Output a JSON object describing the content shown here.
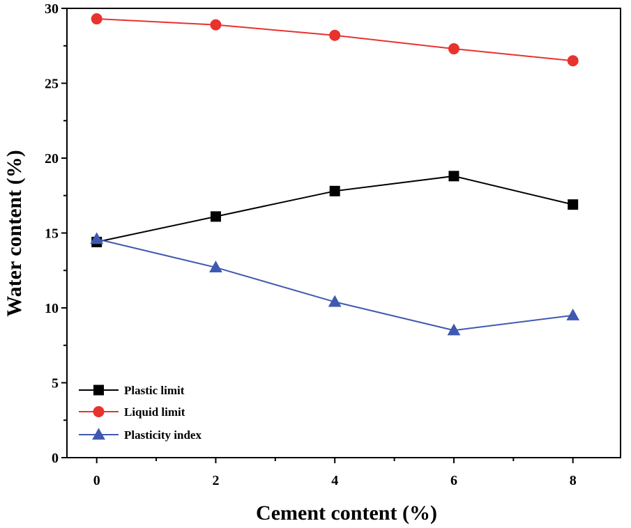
{
  "chart_data": {
    "type": "line",
    "title": "",
    "xlabel": "Cement content (%)",
    "ylabel": "Water content (%)",
    "xlim": [
      -0.5,
      8.8
    ],
    "ylim": [
      0,
      30
    ],
    "x_ticks": [
      0,
      2,
      4,
      6,
      8
    ],
    "y_ticks": [
      0,
      5,
      10,
      15,
      20,
      25,
      30
    ],
    "x": [
      0,
      2,
      4,
      6,
      8
    ],
    "legend_position": "bottom-left",
    "series": [
      {
        "name": "Plastic limit",
        "marker": "square",
        "color": "#000000",
        "values": [
          14.4,
          16.1,
          17.8,
          18.8,
          16.9
        ]
      },
      {
        "name": "Liquid limit",
        "marker": "circle",
        "color": "#e8322e",
        "values": [
          29.3,
          28.9,
          28.2,
          27.3,
          26.5
        ]
      },
      {
        "name": "Plasticity index",
        "marker": "triangle",
        "color": "#4059b0",
        "values": [
          14.6,
          12.7,
          10.4,
          8.5,
          9.5
        ]
      }
    ]
  }
}
